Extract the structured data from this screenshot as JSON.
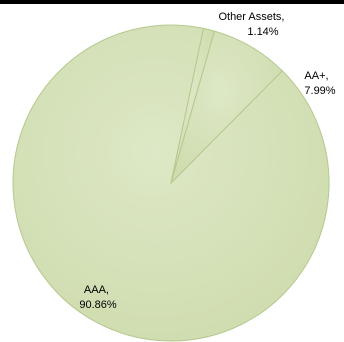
{
  "chart_data": {
    "type": "pie",
    "slices": [
      {
        "name": "AAA",
        "value": 90.86,
        "label": "AAA,",
        "value_label": "90.86%"
      },
      {
        "name": "Other Assets",
        "value": 1.14,
        "label": "Other Assets,",
        "value_label": "1.14%"
      },
      {
        "name": "AA+",
        "value": 7.99,
        "label": "AA+,",
        "value_label": "7.99%"
      }
    ],
    "colors": {
      "fill": "#d7e4bd",
      "stroke": "#b4c98f",
      "shadow": "#c2d49a"
    }
  }
}
